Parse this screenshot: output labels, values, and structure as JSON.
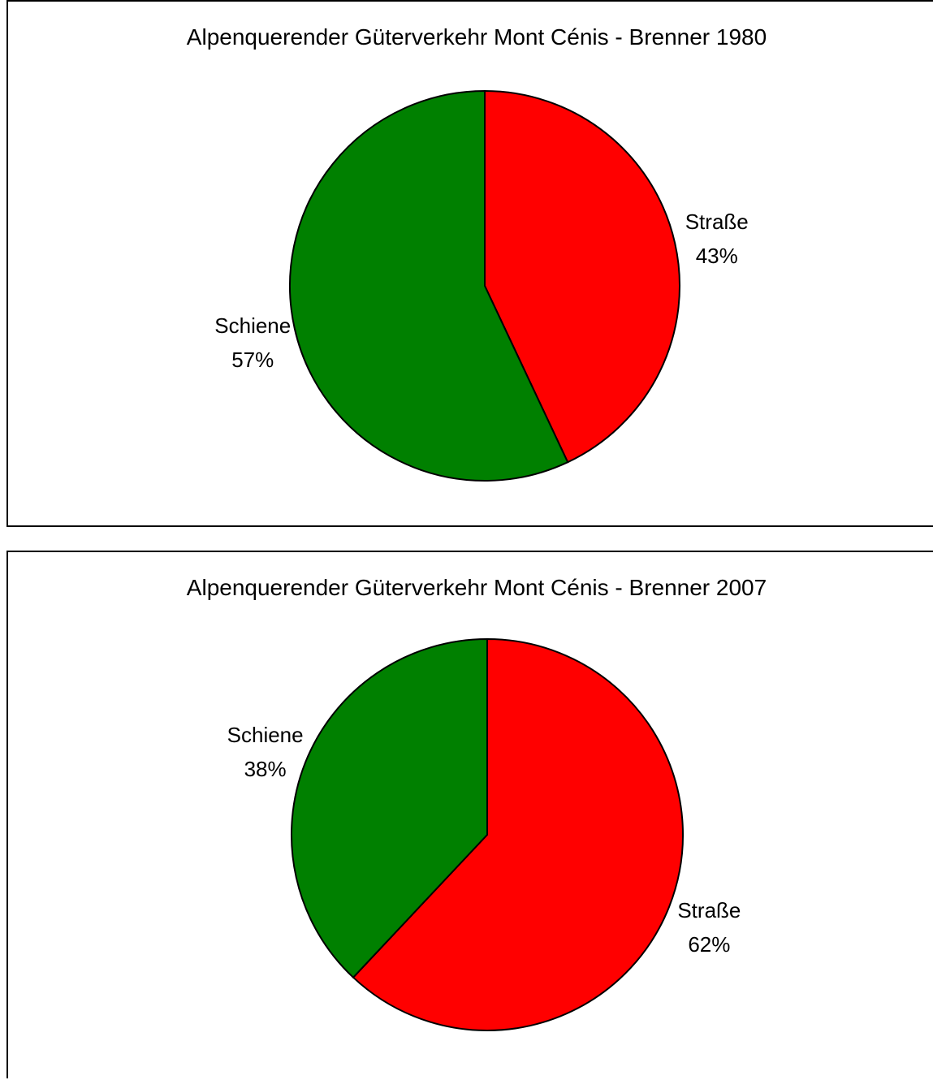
{
  "chart_data": [
    {
      "type": "pie",
      "title": "Alpenquerender Güterverkehr Mont Cénis - Brenner 1980",
      "categories": [
        "Straße",
        "Schiene"
      ],
      "values": [
        43,
        57
      ],
      "value_labels": [
        "43%",
        "57%"
      ],
      "colors": [
        "#ff0000",
        "#008000"
      ],
      "legend": "none"
    },
    {
      "type": "pie",
      "title": "Alpenquerender Güterverkehr Mont Cénis - Brenner 2007",
      "categories": [
        "Straße",
        "Schiene"
      ],
      "values": [
        62,
        38
      ],
      "value_labels": [
        "62%",
        "38%"
      ],
      "colors": [
        "#ff0000",
        "#008000"
      ],
      "legend": "none"
    }
  ]
}
